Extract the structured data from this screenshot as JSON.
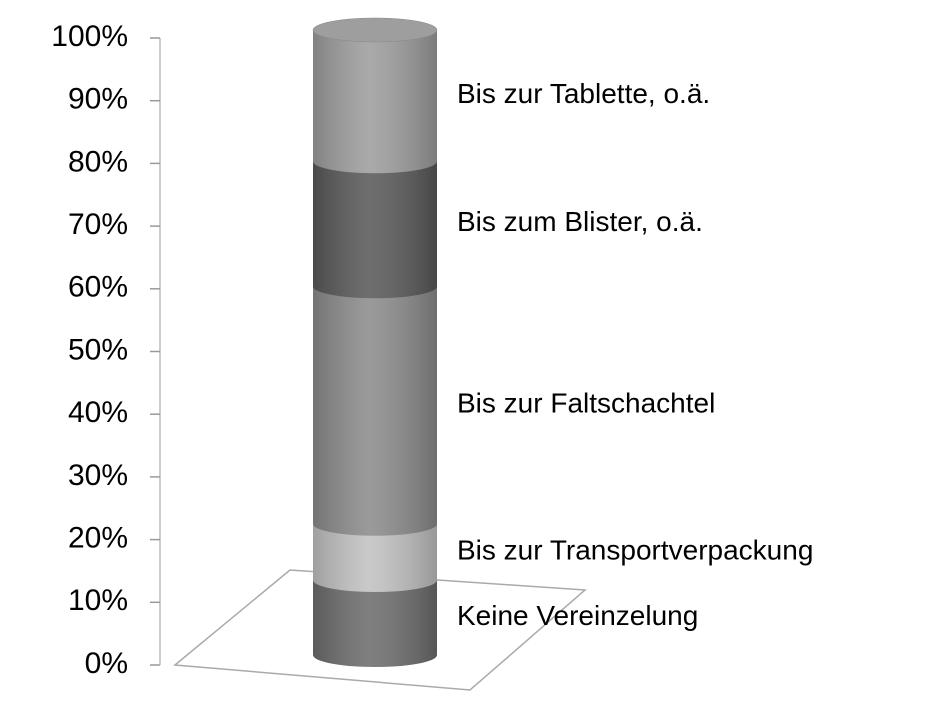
{
  "chart_data": {
    "type": "bar",
    "stacked": true,
    "series": [
      {
        "name": "Keine Vereinzelung",
        "color": "#6e6e6e",
        "values": [
          12
        ]
      },
      {
        "name": "Bis zur Transportverpackung",
        "color": "#c2c2c2",
        "values": [
          9
        ]
      },
      {
        "name": "Bis zur Faltschachtel",
        "color": "#8c8c8c",
        "values": [
          38
        ]
      },
      {
        "name": "Bis zum Blister, o.ä.",
        "color": "#5a5a5a",
        "values": [
          20
        ]
      },
      {
        "name": "Bis zur Tablette, o.ä.",
        "color": "#9e9e9e",
        "values": [
          21
        ]
      }
    ],
    "ylim": [
      0,
      100
    ],
    "yticks": [
      {
        "value": 0,
        "label": "0%"
      },
      {
        "value": 10,
        "label": "10%"
      },
      {
        "value": 20,
        "label": "20%"
      },
      {
        "value": 30,
        "label": "30%"
      },
      {
        "value": 40,
        "label": "40%"
      },
      {
        "value": 50,
        "label": "50%"
      },
      {
        "value": 60,
        "label": "60%"
      },
      {
        "value": 70,
        "label": "70%"
      },
      {
        "value": 80,
        "label": "80%"
      },
      {
        "value": 90,
        "label": "90%"
      },
      {
        "value": 100,
        "label": "100%"
      }
    ]
  }
}
